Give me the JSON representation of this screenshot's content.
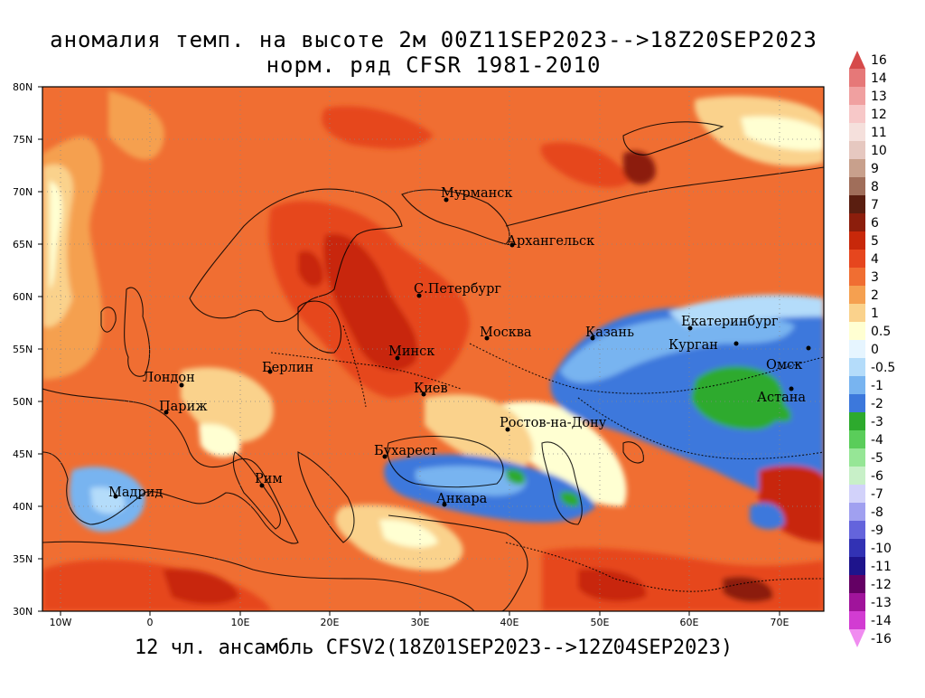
{
  "titles": {
    "line1": "аномалия темп. на высоте 2м 00Z11SEP2023-->18Z20SEP2023",
    "line2": "норм. ряд CFSR 1981-2010",
    "caption": "12 чл. ансамбль CFSV2(18Z01SEP2023-->12Z04SEP2023)"
  },
  "axes": {
    "lat_ticks": [
      "80N",
      "75N",
      "70N",
      "65N",
      "60N",
      "55N",
      "50N",
      "45N",
      "40N",
      "35N",
      "30N"
    ],
    "lon_ticks": [
      "10W",
      "0",
      "10E",
      "20E",
      "30E",
      "40E",
      "50E",
      "60E",
      "70E"
    ]
  },
  "cities": [
    "Мурманск",
    "Архангельск",
    "С.Петербург",
    "Москва",
    "Казань",
    "Екатеринбург",
    "Курган",
    "Омск",
    "Астана",
    "Минск",
    "Лондон",
    "Берлин",
    "Париж",
    "Киев",
    "Ростов-на-Дону",
    "Бухарест",
    "Мадрид",
    "Рим",
    "Анкара"
  ],
  "colorbar": {
    "labels": [
      "16",
      "14",
      "13",
      "12",
      "11",
      "10",
      "9",
      "8",
      "7",
      "6",
      "5",
      "4",
      "3",
      "2",
      "1",
      "0.5",
      "0",
      "-0.5",
      "-1",
      "-2",
      "-3",
      "-4",
      "-5",
      "-6",
      "-7",
      "-8",
      "-9",
      "-10",
      "-11",
      "-12",
      "-13",
      "-14",
      "-16"
    ],
    "colors": [
      "#d64a4a",
      "#e67878",
      "#f0a0a0",
      "#f7c8c8",
      "#f5e0dc",
      "#e6c8c0",
      "#c8a08c",
      "#a06e5a",
      "#5a1e10",
      "#8c1e0c",
      "#c8280a",
      "#e6461e",
      "#f06e32",
      "#f5a050",
      "#fad28c",
      "#ffffd2",
      "#e6f5ff",
      "#b4dcfa",
      "#78b4f0",
      "#3c78dc",
      "#2daa2d",
      "#5acd5a",
      "#96e696",
      "#c8f0c8",
      "#d2d2fa",
      "#a0a0f0",
      "#6464dc",
      "#3232b4",
      "#1e148c",
      "#640064",
      "#a0149b",
      "#d23cd2",
      "#f08cf0"
    ]
  }
}
